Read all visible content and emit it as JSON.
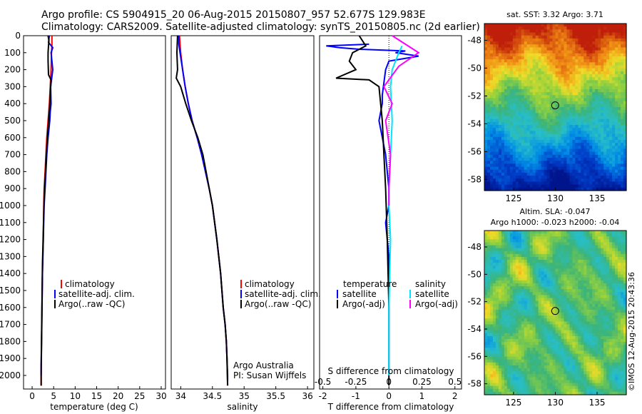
{
  "header": {
    "line1": "Argo profile: CS 5904915_20 06-Aug-2015 20150807_957 52.677S 129.983E",
    "line2": "Climatology: CARS2009. Satellite-adjusted climatology: synTS_20150805.nc (2d earlier)"
  },
  "credit": "©IMOS 12-Aug-2015 20:43:36",
  "colors": {
    "climatology": "#ff0000",
    "satellite": "#0000ff",
    "argo": "#000000",
    "sal_satellite": "#00e5ff",
    "sal_argo": "#ff00ff"
  },
  "chart_data": [
    {
      "type": "line",
      "panel": "temperature",
      "xlabel": "temperature (deg C)",
      "ylabel": "",
      "xlim": [
        -2,
        31
      ],
      "ylim": [
        2080,
        0
      ],
      "yticks": [
        0,
        100,
        200,
        300,
        400,
        500,
        600,
        700,
        800,
        900,
        1000,
        1100,
        1200,
        1300,
        1400,
        1500,
        1600,
        1700,
        1800,
        1900,
        2000
      ],
      "xticks": [
        0,
        5,
        10,
        15,
        20,
        25,
        30
      ],
      "legend": [
        "climatology",
        "satellite-adj. clim.",
        "Argo(..raw -QC)"
      ],
      "series": [
        {
          "name": "climatology",
          "color": "#ff0000",
          "x": [
            4.6,
            4.6,
            4.5,
            4.4,
            4.2,
            4.0,
            3.7,
            3.4,
            3.2,
            3.0,
            2.8,
            2.7,
            2.6,
            2.4,
            2.3,
            2.2,
            2.1,
            2.1
          ],
          "y": [
            0,
            50,
            100,
            200,
            300,
            400,
            500,
            600,
            700,
            800,
            900,
            1000,
            1200,
            1400,
            1600,
            1800,
            2000,
            2060
          ]
        },
        {
          "name": "satellite-adj. clim.",
          "color": "#0000ff",
          "x": [
            4.0,
            3.8,
            4.8,
            4.4,
            4.8,
            4.3,
            4.4,
            4.2,
            4.1,
            3.7,
            3.4,
            3.2,
            3.0,
            2.8,
            2.7,
            2.6,
            2.4,
            2.3,
            2.2,
            2.1,
            2.1
          ],
          "y": [
            0,
            40,
            70,
            100,
            200,
            300,
            400,
            450,
            500,
            600,
            700,
            800,
            900,
            1000,
            1100,
            1200,
            1400,
            1600,
            1800,
            1950,
            2000
          ]
        },
        {
          "name": "Argo(..raw -QC)",
          "color": "#000000",
          "x": [
            3.7,
            3.9,
            3.8,
            3.7,
            3.7,
            3.8,
            4.4,
            4.2,
            4.0,
            3.7,
            3.4,
            3.2,
            3.0,
            2.8,
            2.7,
            2.6,
            2.4,
            2.3,
            2.2,
            2.1,
            2.1
          ],
          "y": [
            0,
            30,
            60,
            100,
            150,
            230,
            260,
            350,
            450,
            550,
            650,
            750,
            850,
            950,
            1050,
            1150,
            1350,
            1550,
            1750,
            1950,
            2060
          ]
        }
      ]
    },
    {
      "type": "line",
      "panel": "salinity",
      "xlabel": "salinity",
      "ylabel": "",
      "xlim": [
        33.85,
        36.1
      ],
      "ylim": [
        2080,
        0
      ],
      "xticks": [
        34,
        34.5,
        35,
        35.5,
        36
      ],
      "legend": [
        "climatology",
        "satellite-adj. clim.",
        "Argo(..raw -QC)"
      ],
      "annotation": [
        "Argo Australia",
        "PI: Susan Wijffels"
      ],
      "series": [
        {
          "name": "climatology",
          "color": "#ff0000",
          "x": [
            33.98,
            33.99,
            34.0,
            34.03,
            34.07,
            34.12,
            34.18,
            34.26,
            34.33,
            34.39,
            34.45,
            34.5,
            34.57,
            34.63,
            34.67,
            34.7,
            34.72,
            34.73,
            34.74
          ],
          "y": [
            0,
            50,
            100,
            200,
            300,
            400,
            500,
            600,
            700,
            800,
            900,
            1000,
            1200,
            1400,
            1600,
            1700,
            1800,
            1900,
            2060
          ]
        },
        {
          "name": "satellite-adj. clim.",
          "color": "#0000ff",
          "x": [
            33.97,
            33.97,
            33.99,
            34.03,
            34.07,
            34.12,
            34.18,
            34.26,
            34.33,
            34.39,
            34.45,
            34.5,
            34.57,
            34.63,
            34.67,
            34.7,
            34.72,
            34.73,
            34.74,
            34.74
          ],
          "y": [
            0,
            50,
            100,
            200,
            300,
            400,
            500,
            600,
            700,
            800,
            900,
            1000,
            1200,
            1400,
            1600,
            1700,
            1800,
            1900,
            2000,
            2030
          ]
        },
        {
          "name": "Argo(..raw -QC)",
          "color": "#000000",
          "x": [
            33.95,
            33.94,
            33.95,
            33.93,
            34.0,
            34.08,
            34.17,
            34.27,
            34.35,
            34.4,
            34.45,
            34.5,
            34.57,
            34.63,
            34.67,
            34.7,
            34.72,
            34.73,
            34.74
          ],
          "y": [
            0,
            100,
            200,
            250,
            300,
            400,
            500,
            600,
            700,
            800,
            900,
            1000,
            1200,
            1400,
            1600,
            1700,
            1800,
            1900,
            2060
          ]
        }
      ]
    },
    {
      "type": "line",
      "panel": "difference",
      "xlabel_bottom": "T difference from climatology",
      "xlabel_top": "S difference from climatology",
      "xlim": [
        -2.1,
        2.2
      ],
      "ylim": [
        2080,
        0
      ],
      "xticks_bottom": [
        -2,
        -1,
        0,
        1,
        2
      ],
      "xticks_top": [
        "-0.5",
        "-0.25",
        "0",
        "0.25",
        "0.5"
      ],
      "legend_left_title": "temperature",
      "legend_right_title": "salinity",
      "legend_left": [
        "satellite",
        "Argo(-adj)"
      ],
      "legend_right": [
        "satellite",
        "Argo(-adj)"
      ],
      "series": [
        {
          "name": "temperature satellite",
          "color": "#0000ff",
          "x": [
            -0.6,
            -1.9,
            -1.5,
            -0.9,
            0.5,
            0.2,
            0.9,
            0.0,
            -0.1,
            -0.2,
            -0.2,
            -0.3,
            -0.1,
            0.0,
            0.0,
            -0.1,
            0.0,
            0.0,
            0.0
          ],
          "y": [
            50,
            60,
            70,
            80,
            90,
            100,
            120,
            150,
            200,
            350,
            400,
            500,
            700,
            900,
            1000,
            1100,
            1300,
            1600,
            2000
          ]
        },
        {
          "name": "temperature Argo(-adj)",
          "color": "#000000",
          "x": [
            -0.9,
            -0.7,
            -1.1,
            -1.2,
            -1.0,
            -1.6,
            -0.6,
            -0.3,
            -0.25,
            -0.2,
            -0.15,
            -0.1,
            -0.05,
            0.0,
            0.0
          ],
          "y": [
            0,
            60,
            100,
            150,
            200,
            250,
            260,
            300,
            400,
            500,
            700,
            900,
            1200,
            1600,
            2060
          ]
        },
        {
          "name": "salinity satellite",
          "color": "#00e5ff",
          "x": [
            0.4,
            0.3,
            0.1,
            0.05,
            0.1,
            0.05,
            0.0,
            0.0,
            0.05,
            0.0,
            0.0,
            0.0
          ],
          "y": [
            60,
            100,
            200,
            300,
            500,
            700,
            900,
            1000,
            1200,
            1600,
            1900,
            2000
          ]
        },
        {
          "name": "salinity Argo(-adj)",
          "color": "#ff00ff",
          "x": [
            0.1,
            0.5,
            0.9,
            0.3,
            -0.15,
            0.1,
            -0.1,
            0.05,
            0.0,
            0.0
          ],
          "y": [
            0,
            50,
            100,
            180,
            300,
            400,
            500,
            700,
            900,
            1000
          ]
        }
      ]
    },
    {
      "type": "heatmap",
      "panel": "sst_map",
      "title": "sat. SST: 3.32  Argo: 3.71",
      "xticks": [
        125,
        130,
        135
      ],
      "yticks": [
        -48,
        -50,
        -52,
        -54,
        -56,
        -58
      ],
      "xlim": [
        121.5,
        138.5
      ],
      "ylim": [
        -58.8,
        -46.8
      ],
      "marker": {
        "lon": 129.983,
        "lat": -52.677
      }
    },
    {
      "type": "heatmap",
      "panel": "sla_map",
      "title": [
        "Altim. SLA: -0.047",
        "Argo h1000: -0.023 h2000: -0.04"
      ],
      "xticks": [
        125,
        130,
        135
      ],
      "yticks": [
        -48,
        -50,
        -52,
        -54,
        -56,
        -58
      ],
      "xlim": [
        121.5,
        138.5
      ],
      "ylim": [
        -58.8,
        -46.8
      ],
      "marker": {
        "lon": 129.983,
        "lat": -52.677
      }
    }
  ]
}
